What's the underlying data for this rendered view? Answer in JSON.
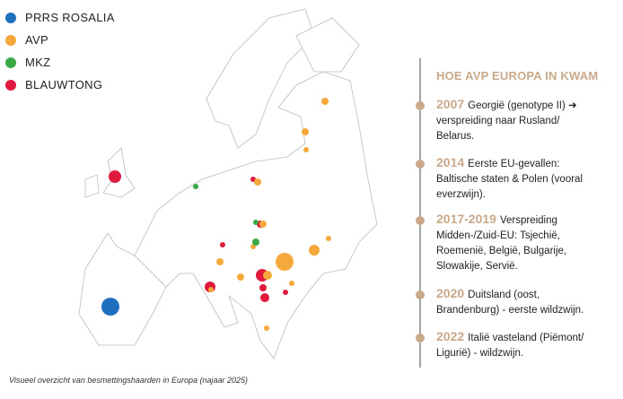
{
  "legend": [
    {
      "label": "PRRS ROSALIA",
      "color": "#1f6fbf"
    },
    {
      "label": "AVP",
      "color": "#f5a93b"
    },
    {
      "label": "MKZ",
      "color": "#3aa845"
    },
    {
      "label": "BLAUWTONG",
      "color": "#e0193f"
    }
  ],
  "timeline": {
    "title": "HOE AVP EUROPA IN KWAM",
    "events": [
      {
        "year": "2007",
        "text": "Georgië (genotype II) ➜ verspreiding naar Rusland/ Belarus."
      },
      {
        "year": "2014",
        "text": "Eerste EU-gevallen: Baltische staten & Polen (vooral everzwijn)."
      },
      {
        "year": "2017-2019",
        "text": "Verspreiding Midden-/Zuid-EU: Tsjechië, Roemenië, België, Bulgarije, Slowakije, Servië."
      },
      {
        "year": "2020",
        "text": "Duitsland (oost, Brandenburg) - eerste wildzwijn."
      },
      {
        "year": "2022",
        "text": "Italië vasteland (Piëmont/ Ligurië) - wildzwijn."
      }
    ]
  },
  "caption": "Visueel overzicht van besmettingshaarden in Europa (najaar 2025)"
}
